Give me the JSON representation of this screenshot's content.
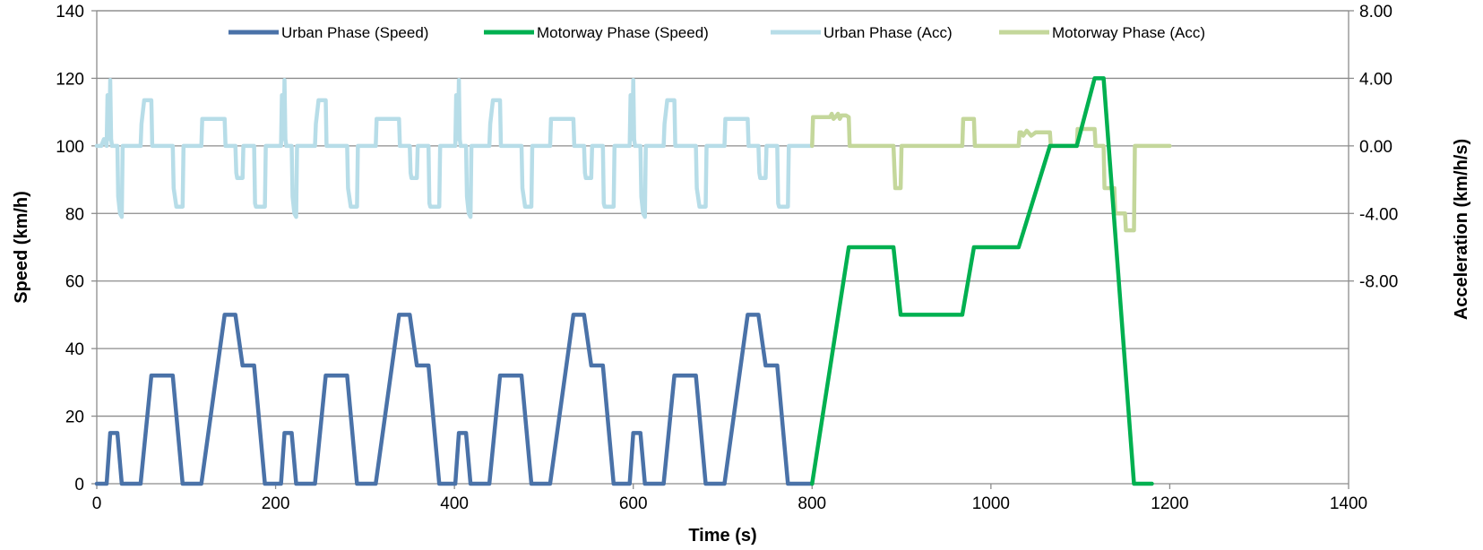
{
  "chart_data": {
    "type": "line",
    "xlabel": "Time (s)",
    "ylabel": "Speed (km/h)",
    "y2label": "Acceleration (km/h/s)",
    "xlim": [
      0,
      1400
    ],
    "ylim": [
      0,
      140
    ],
    "y2lim": [
      -20,
      8
    ],
    "x_ticks": [
      "0",
      "200",
      "400",
      "600",
      "800",
      "1000",
      "1200",
      "1400"
    ],
    "y_ticks": [
      "0",
      "20",
      "40",
      "60",
      "80",
      "100",
      "120",
      "140"
    ],
    "y2_ticks": [
      "8.00",
      "4.00",
      "0.00",
      "-4.00",
      "-8.00"
    ],
    "grid": "horizontal",
    "legend_position": "top",
    "series": [
      {
        "name": "Urban Phase (Speed)",
        "axis": "left",
        "color": "#4a72a8",
        "points": [
          [
            0,
            0
          ],
          [
            11,
            0
          ],
          [
            15,
            15
          ],
          [
            23,
            15
          ],
          [
            28,
            0
          ],
          [
            49,
            0
          ],
          [
            61,
            32
          ],
          [
            85,
            32
          ],
          [
            96,
            0
          ],
          [
            117,
            0
          ],
          [
            143,
            50
          ],
          [
            155,
            50
          ],
          [
            163,
            35
          ],
          [
            176,
            35
          ],
          [
            188,
            0
          ],
          [
            195,
            0
          ],
          [
            206,
            0
          ],
          [
            210,
            15
          ],
          [
            218,
            15
          ],
          [
            223,
            0
          ],
          [
            244,
            0
          ],
          [
            256,
            32
          ],
          [
            280,
            32
          ],
          [
            291,
            0
          ],
          [
            312,
            0
          ],
          [
            338,
            50
          ],
          [
            350,
            50
          ],
          [
            358,
            35
          ],
          [
            371,
            35
          ],
          [
            383,
            0
          ],
          [
            390,
            0
          ],
          [
            401,
            0
          ],
          [
            405,
            15
          ],
          [
            413,
            15
          ],
          [
            418,
            0
          ],
          [
            439,
            0
          ],
          [
            451,
            32
          ],
          [
            475,
            32
          ],
          [
            486,
            0
          ],
          [
            507,
            0
          ],
          [
            533,
            50
          ],
          [
            545,
            50
          ],
          [
            553,
            35
          ],
          [
            566,
            35
          ],
          [
            578,
            0
          ],
          [
            585,
            0
          ],
          [
            596,
            0
          ],
          [
            600,
            15
          ],
          [
            608,
            15
          ],
          [
            613,
            0
          ],
          [
            634,
            0
          ],
          [
            646,
            32
          ],
          [
            670,
            32
          ],
          [
            681,
            0
          ],
          [
            702,
            0
          ],
          [
            728,
            50
          ],
          [
            740,
            50
          ],
          [
            748,
            35
          ],
          [
            761,
            35
          ],
          [
            773,
            0
          ],
          [
            780,
            0
          ],
          [
            800,
            0
          ]
        ]
      },
      {
        "name": "Motorway Phase (Speed)",
        "axis": "left",
        "color": "#00b050",
        "points": [
          [
            800,
            0
          ],
          [
            841,
            70
          ],
          [
            891,
            70
          ],
          [
            899,
            50
          ],
          [
            968,
            50
          ],
          [
            981,
            70
          ],
          [
            1031,
            70
          ],
          [
            1066,
            100
          ],
          [
            1096,
            100
          ],
          [
            1116,
            120
          ],
          [
            1126,
            120
          ],
          [
            1160,
            0
          ],
          [
            1180,
            0
          ]
        ]
      },
      {
        "name": "Urban Phase (Acc)",
        "axis": "right",
        "color": "#b7dde8",
        "points": [
          [
            0,
            0
          ],
          [
            5,
            0
          ],
          [
            8,
            0.4
          ],
          [
            11,
            0
          ],
          [
            12,
            3
          ],
          [
            14,
            0.4
          ],
          [
            15,
            3.9
          ],
          [
            16,
            0.4
          ],
          [
            17,
            0
          ],
          [
            23,
            0
          ],
          [
            24,
            -3
          ],
          [
            25,
            -3.5
          ],
          [
            26,
            -4
          ],
          [
            28,
            -4.2
          ],
          [
            29,
            0
          ],
          [
            49,
            0
          ],
          [
            50,
            1.3
          ],
          [
            53,
            2.7
          ],
          [
            61,
            2.7
          ],
          [
            62,
            0
          ],
          [
            85,
            0
          ],
          [
            86,
            -2.5
          ],
          [
            89,
            -3.6
          ],
          [
            91,
            -3.6
          ],
          [
            96,
            -3.6
          ],
          [
            97,
            0
          ],
          [
            117,
            0
          ],
          [
            118,
            1.6
          ],
          [
            121,
            1.6
          ],
          [
            143,
            1.6
          ],
          [
            144,
            0
          ],
          [
            155,
            0
          ],
          [
            156,
            -1.6
          ],
          [
            157,
            -1.9
          ],
          [
            163,
            -1.9
          ],
          [
            164,
            0
          ],
          [
            176,
            0
          ],
          [
            177,
            -3.4
          ],
          [
            178,
            -3.6
          ],
          [
            188,
            -3.6
          ],
          [
            189,
            0
          ],
          [
            206,
            0
          ],
          [
            207,
            3
          ],
          [
            209,
            0.4
          ],
          [
            210,
            3.9
          ],
          [
            211,
            0.4
          ],
          [
            212,
            0
          ],
          [
            218,
            0
          ],
          [
            219,
            -3
          ],
          [
            220,
            -3.5
          ],
          [
            221,
            -4
          ],
          [
            223,
            -4.2
          ],
          [
            224,
            0
          ],
          [
            244,
            0
          ],
          [
            245,
            1.3
          ],
          [
            248,
            2.7
          ],
          [
            256,
            2.7
          ],
          [
            257,
            0
          ],
          [
            280,
            0
          ],
          [
            281,
            -2.5
          ],
          [
            284,
            -3.6
          ],
          [
            291,
            -3.6
          ],
          [
            292,
            0
          ],
          [
            312,
            0
          ],
          [
            313,
            1.6
          ],
          [
            316,
            1.6
          ],
          [
            338,
            1.6
          ],
          [
            339,
            0
          ],
          [
            350,
            0
          ],
          [
            351,
            -1.6
          ],
          [
            352,
            -1.9
          ],
          [
            358,
            -1.9
          ],
          [
            359,
            0
          ],
          [
            371,
            0
          ],
          [
            372,
            -3.4
          ],
          [
            373,
            -3.6
          ],
          [
            383,
            -3.6
          ],
          [
            384,
            0
          ],
          [
            401,
            0
          ],
          [
            402,
            3
          ],
          [
            404,
            0.4
          ],
          [
            405,
            3.9
          ],
          [
            406,
            0.4
          ],
          [
            407,
            0
          ],
          [
            413,
            0
          ],
          [
            414,
            -3
          ],
          [
            415,
            -3.5
          ],
          [
            416,
            -4
          ],
          [
            418,
            -4.2
          ],
          [
            419,
            0
          ],
          [
            439,
            0
          ],
          [
            440,
            1.3
          ],
          [
            443,
            2.7
          ],
          [
            451,
            2.7
          ],
          [
            452,
            0
          ],
          [
            475,
            0
          ],
          [
            476,
            -2.5
          ],
          [
            479,
            -3.6
          ],
          [
            486,
            -3.6
          ],
          [
            487,
            0
          ],
          [
            507,
            0
          ],
          [
            508,
            1.6
          ],
          [
            511,
            1.6
          ],
          [
            533,
            1.6
          ],
          [
            534,
            0
          ],
          [
            545,
            0
          ],
          [
            546,
            -1.6
          ],
          [
            547,
            -1.9
          ],
          [
            553,
            -1.9
          ],
          [
            554,
            0
          ],
          [
            566,
            0
          ],
          [
            567,
            -3.4
          ],
          [
            568,
            -3.6
          ],
          [
            578,
            -3.6
          ],
          [
            579,
            0
          ],
          [
            596,
            0
          ],
          [
            597,
            3
          ],
          [
            599,
            0.4
          ],
          [
            600,
            3.9
          ],
          [
            601,
            0.4
          ],
          [
            602,
            0
          ],
          [
            608,
            0
          ],
          [
            609,
            -3
          ],
          [
            610,
            -3.5
          ],
          [
            611,
            -4
          ],
          [
            613,
            -4.2
          ],
          [
            614,
            0
          ],
          [
            634,
            0
          ],
          [
            635,
            1.3
          ],
          [
            638,
            2.7
          ],
          [
            646,
            2.7
          ],
          [
            647,
            0
          ],
          [
            670,
            0
          ],
          [
            671,
            -2.5
          ],
          [
            674,
            -3.6
          ],
          [
            681,
            -3.6
          ],
          [
            682,
            0
          ],
          [
            702,
            0
          ],
          [
            703,
            1.6
          ],
          [
            706,
            1.6
          ],
          [
            728,
            1.6
          ],
          [
            729,
            0
          ],
          [
            740,
            0
          ],
          [
            741,
            -1.6
          ],
          [
            742,
            -1.9
          ],
          [
            748,
            -1.9
          ],
          [
            749,
            0
          ],
          [
            761,
            0
          ],
          [
            762,
            -3.4
          ],
          [
            763,
            -3.6
          ],
          [
            773,
            -3.6
          ],
          [
            774,
            0
          ],
          [
            800,
            0
          ]
        ]
      },
      {
        "name": "Motorway Phase (Acc)",
        "axis": "right",
        "color": "#c4d79b",
        "points": [
          [
            800,
            0
          ],
          [
            801,
            1.7
          ],
          [
            820,
            1.7
          ],
          [
            822,
            1.9
          ],
          [
            824,
            1.6
          ],
          [
            826,
            1.7
          ],
          [
            829,
            1.9
          ],
          [
            831,
            1.6
          ],
          [
            833,
            1.8
          ],
          [
            838,
            1.8
          ],
          [
            841,
            1.7
          ],
          [
            842,
            0
          ],
          [
            891,
            0
          ],
          [
            892,
            -1.3
          ],
          [
            893,
            -2.5
          ],
          [
            899,
            -2.5
          ],
          [
            900,
            0
          ],
          [
            968,
            0
          ],
          [
            969,
            1.6
          ],
          [
            981,
            1.6
          ],
          [
            982,
            0
          ],
          [
            1031,
            0
          ],
          [
            1032,
            0.8
          ],
          [
            1034,
            0.8
          ],
          [
            1036,
            0.6
          ],
          [
            1040,
            0.9
          ],
          [
            1045,
            0.6
          ],
          [
            1050,
            0.8
          ],
          [
            1066,
            0.8
          ],
          [
            1067,
            0
          ],
          [
            1096,
            0
          ],
          [
            1097,
            1
          ],
          [
            1116,
            1
          ],
          [
            1117,
            0
          ],
          [
            1126,
            0
          ],
          [
            1127,
            -2.5
          ],
          [
            1138,
            -2.5
          ],
          [
            1139,
            -4
          ],
          [
            1150,
            -4
          ],
          [
            1151,
            -5
          ],
          [
            1160,
            -5
          ],
          [
            1161,
            0
          ],
          [
            1200,
            0
          ]
        ]
      }
    ]
  }
}
